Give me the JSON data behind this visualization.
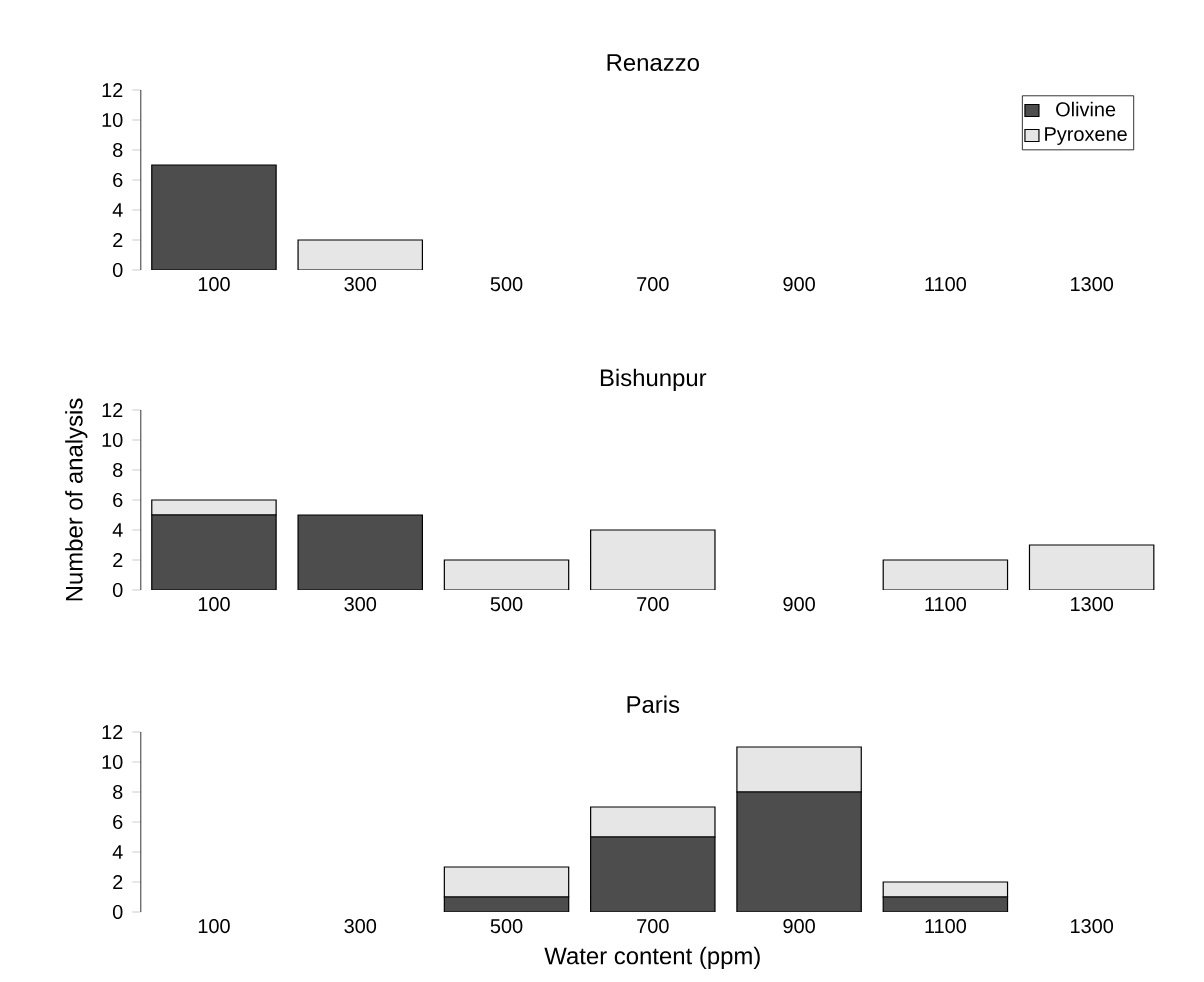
{
  "chart_data": [
    {
      "type": "bar",
      "stacked": true,
      "title": "Renazzo",
      "categories": [
        "100",
        "300",
        "500",
        "700",
        "900",
        "1100",
        "1300"
      ],
      "series": [
        {
          "name": "Olivine",
          "color": "#4d4d4d",
          "values": [
            7,
            0,
            0,
            0,
            0,
            0,
            0
          ]
        },
        {
          "name": "Pyroxene",
          "color": "#e6e6e6",
          "values": [
            0,
            2,
            0,
            0,
            0,
            0,
            0
          ]
        }
      ],
      "ylim": [
        0,
        12
      ],
      "yticks": [
        0,
        2,
        4,
        6,
        8,
        10,
        12
      ],
      "legend": "top right"
    },
    {
      "type": "bar",
      "stacked": true,
      "title": "Bishunpur",
      "ylabel": "Number of analysis",
      "categories": [
        "100",
        "300",
        "500",
        "700",
        "900",
        "1100",
        "1300"
      ],
      "series": [
        {
          "color": "#4d4d4d",
          "values": [
            5,
            5,
            0,
            0,
            0,
            0,
            0
          ]
        },
        {
          "color": "#e6e6e6",
          "values": [
            1,
            0,
            2,
            4,
            0,
            2,
            3
          ]
        }
      ],
      "ylim": [
        0,
        12
      ],
      "yticks": [
        0,
        2,
        4,
        6,
        8,
        10,
        12
      ]
    },
    {
      "type": "bar",
      "stacked": true,
      "title": "Paris",
      "xlabel": "Water content (ppm)",
      "categories": [
        "100",
        "300",
        "500",
        "700",
        "900",
        "1100",
        "1300"
      ],
      "series": [
        {
          "color": "#4d4d4d",
          "values": [
            0,
            0,
            1,
            5,
            8,
            1,
            0
          ]
        },
        {
          "color": "#e6e6e6",
          "values": [
            0,
            0,
            2,
            2,
            3,
            1,
            0
          ]
        }
      ],
      "ylim": [
        0,
        12
      ],
      "yticks": [
        0,
        2,
        4,
        6,
        8,
        10,
        12
      ]
    }
  ]
}
